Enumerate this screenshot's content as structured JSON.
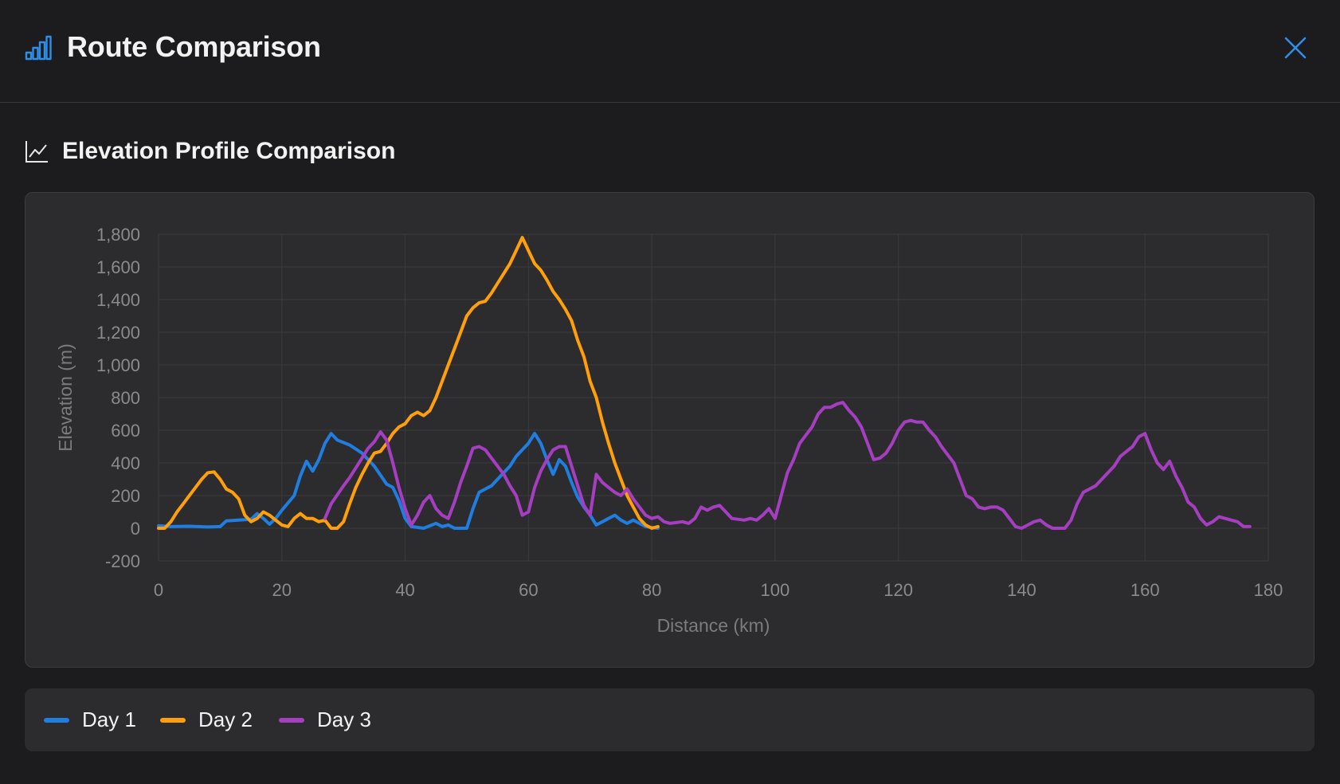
{
  "header": {
    "title": "Route Comparison",
    "icon": "bar-chart-icon",
    "close_icon": "close-icon"
  },
  "section": {
    "title": "Elevation Profile Comparison",
    "icon": "line-chart-icon"
  },
  "colors": {
    "accent": "#2f8fe8",
    "day1": "#1f7ee0",
    "day2": "#ff9f0a",
    "day3": "#a53ec0"
  },
  "legend": {
    "items": [
      {
        "label": "Day 1",
        "color": "#1f7ee0"
      },
      {
        "label": "Day 2",
        "color": "#ff9f0a"
      },
      {
        "label": "Day 3",
        "color": "#a53ec0"
      }
    ]
  },
  "chart_data": {
    "type": "line",
    "xlabel": "Distance (km)",
    "ylabel": "Elevation (m)",
    "xlim": [
      0,
      180
    ],
    "ylim": [
      -200,
      1800
    ],
    "xticks": [
      0,
      20,
      40,
      60,
      80,
      100,
      120,
      140,
      160,
      180
    ],
    "yticks": [
      -200,
      0,
      200,
      400,
      600,
      800,
      1000,
      1200,
      1400,
      1600,
      1800
    ],
    "ytick_labels": [
      "-200",
      "0",
      "200",
      "400",
      "600",
      "800",
      "1,000",
      "1,200",
      "1,400",
      "1,600",
      "1,800"
    ],
    "xtick_labels": [
      "0",
      "20",
      "40",
      "60",
      "80",
      "100",
      "120",
      "140",
      "160",
      "180"
    ],
    "grid": true,
    "legend_position": "bottom",
    "series": [
      {
        "name": "Day 1",
        "color": "#1f7ee0",
        "points": [
          [
            0,
            15
          ],
          [
            2,
            10
          ],
          [
            5,
            12
          ],
          [
            8,
            8
          ],
          [
            10,
            10
          ],
          [
            11,
            45
          ],
          [
            13,
            50
          ],
          [
            15,
            55
          ],
          [
            16,
            90
          ],
          [
            17,
            60
          ],
          [
            18,
            25
          ],
          [
            19,
            60
          ],
          [
            20,
            110
          ],
          [
            22,
            200
          ],
          [
            23,
            320
          ],
          [
            24,
            410
          ],
          [
            25,
            350
          ],
          [
            26,
            420
          ],
          [
            27,
            520
          ],
          [
            28,
            580
          ],
          [
            29,
            540
          ],
          [
            31,
            510
          ],
          [
            33,
            460
          ],
          [
            35,
            380
          ],
          [
            37,
            270
          ],
          [
            38,
            250
          ],
          [
            39,
            170
          ],
          [
            40,
            60
          ],
          [
            41,
            10
          ],
          [
            43,
            0
          ],
          [
            45,
            30
          ],
          [
            46,
            10
          ],
          [
            47,
            20
          ],
          [
            48,
            0
          ],
          [
            50,
            0
          ],
          [
            51,
            120
          ],
          [
            52,
            220
          ],
          [
            54,
            260
          ],
          [
            55,
            300
          ],
          [
            57,
            380
          ],
          [
            58,
            440
          ],
          [
            60,
            520
          ],
          [
            61,
            580
          ],
          [
            62,
            520
          ],
          [
            63,
            420
          ],
          [
            64,
            330
          ],
          [
            65,
            420
          ],
          [
            66,
            380
          ],
          [
            67,
            280
          ],
          [
            68,
            190
          ],
          [
            69,
            130
          ],
          [
            70,
            80
          ],
          [
            71,
            20
          ],
          [
            72,
            40
          ],
          [
            73,
            60
          ],
          [
            74,
            80
          ],
          [
            75,
            50
          ],
          [
            76,
            30
          ],
          [
            77,
            50
          ],
          [
            78,
            30
          ],
          [
            79,
            10
          ],
          [
            80,
            5
          ],
          [
            81,
            0
          ]
        ]
      },
      {
        "name": "Day 2",
        "color": "#ff9f0a",
        "points": [
          [
            0,
            0
          ],
          [
            1,
            0
          ],
          [
            2,
            40
          ],
          [
            3,
            100
          ],
          [
            4,
            150
          ],
          [
            5,
            200
          ],
          [
            6,
            250
          ],
          [
            7,
            300
          ],
          [
            8,
            340
          ],
          [
            9,
            345
          ],
          [
            10,
            300
          ],
          [
            11,
            240
          ],
          [
            12,
            220
          ],
          [
            13,
            180
          ],
          [
            14,
            80
          ],
          [
            15,
            40
          ],
          [
            16,
            60
          ],
          [
            17,
            100
          ],
          [
            18,
            80
          ],
          [
            19,
            50
          ],
          [
            20,
            20
          ],
          [
            21,
            10
          ],
          [
            22,
            60
          ],
          [
            23,
            90
          ],
          [
            24,
            60
          ],
          [
            25,
            60
          ],
          [
            26,
            40
          ],
          [
            27,
            50
          ],
          [
            28,
            0
          ],
          [
            29,
            0
          ],
          [
            30,
            40
          ],
          [
            31,
            150
          ],
          [
            32,
            250
          ],
          [
            33,
            330
          ],
          [
            34,
            400
          ],
          [
            35,
            460
          ],
          [
            36,
            470
          ],
          [
            37,
            520
          ],
          [
            38,
            580
          ],
          [
            39,
            620
          ],
          [
            40,
            640
          ],
          [
            41,
            690
          ],
          [
            42,
            710
          ],
          [
            43,
            690
          ],
          [
            44,
            720
          ],
          [
            45,
            800
          ],
          [
            46,
            900
          ],
          [
            47,
            1000
          ],
          [
            48,
            1100
          ],
          [
            49,
            1200
          ],
          [
            50,
            1300
          ],
          [
            51,
            1350
          ],
          [
            52,
            1380
          ],
          [
            53,
            1390
          ],
          [
            54,
            1440
          ],
          [
            55,
            1500
          ],
          [
            56,
            1560
          ],
          [
            57,
            1620
          ],
          [
            58,
            1700
          ],
          [
            59,
            1780
          ],
          [
            60,
            1700
          ],
          [
            61,
            1620
          ],
          [
            62,
            1580
          ],
          [
            63,
            1520
          ],
          [
            64,
            1450
          ],
          [
            65,
            1400
          ],
          [
            66,
            1340
          ],
          [
            67,
            1270
          ],
          [
            68,
            1150
          ],
          [
            69,
            1050
          ],
          [
            70,
            900
          ],
          [
            71,
            800
          ],
          [
            72,
            650
          ],
          [
            73,
            520
          ],
          [
            74,
            400
          ],
          [
            75,
            300
          ],
          [
            76,
            200
          ],
          [
            77,
            130
          ],
          [
            78,
            60
          ],
          [
            79,
            20
          ],
          [
            80,
            0
          ],
          [
            81,
            10
          ]
        ]
      },
      {
        "name": "Day 3",
        "color": "#a53ec0",
        "points": [
          [
            27,
            60
          ],
          [
            28,
            150
          ],
          [
            30,
            260
          ],
          [
            31,
            310
          ],
          [
            33,
            430
          ],
          [
            34,
            490
          ],
          [
            35,
            530
          ],
          [
            36,
            590
          ],
          [
            37,
            540
          ],
          [
            38,
            400
          ],
          [
            39,
            250
          ],
          [
            40,
            120
          ],
          [
            41,
            20
          ],
          [
            42,
            80
          ],
          [
            43,
            160
          ],
          [
            44,
            200
          ],
          [
            45,
            120
          ],
          [
            46,
            80
          ],
          [
            47,
            60
          ],
          [
            48,
            160
          ],
          [
            49,
            280
          ],
          [
            50,
            380
          ],
          [
            51,
            490
          ],
          [
            52,
            500
          ],
          [
            53,
            480
          ],
          [
            54,
            430
          ],
          [
            55,
            380
          ],
          [
            56,
            330
          ],
          [
            57,
            260
          ],
          [
            58,
            200
          ],
          [
            59,
            80
          ],
          [
            60,
            100
          ],
          [
            61,
            250
          ],
          [
            62,
            350
          ],
          [
            63,
            420
          ],
          [
            64,
            480
          ],
          [
            65,
            500
          ],
          [
            66,
            500
          ],
          [
            67,
            380
          ],
          [
            68,
            260
          ],
          [
            69,
            140
          ],
          [
            70,
            80
          ],
          [
            71,
            330
          ],
          [
            72,
            280
          ],
          [
            73,
            250
          ],
          [
            74,
            220
          ],
          [
            75,
            200
          ],
          [
            76,
            240
          ],
          [
            77,
            180
          ],
          [
            78,
            130
          ],
          [
            79,
            80
          ],
          [
            80,
            60
          ],
          [
            81,
            70
          ],
          [
            82,
            40
          ],
          [
            83,
            30
          ],
          [
            85,
            40
          ],
          [
            86,
            30
          ],
          [
            87,
            60
          ],
          [
            88,
            130
          ],
          [
            89,
            110
          ],
          [
            90,
            130
          ],
          [
            91,
            140
          ],
          [
            92,
            100
          ],
          [
            93,
            60
          ],
          [
            95,
            50
          ],
          [
            96,
            60
          ],
          [
            97,
            50
          ],
          [
            98,
            80
          ],
          [
            99,
            120
          ],
          [
            100,
            60
          ],
          [
            101,
            200
          ],
          [
            102,
            340
          ],
          [
            103,
            420
          ],
          [
            104,
            520
          ],
          [
            106,
            620
          ],
          [
            107,
            700
          ],
          [
            108,
            740
          ],
          [
            109,
            740
          ],
          [
            110,
            760
          ],
          [
            111,
            770
          ],
          [
            112,
            720
          ],
          [
            113,
            680
          ],
          [
            114,
            620
          ],
          [
            115,
            520
          ],
          [
            116,
            420
          ],
          [
            117,
            430
          ],
          [
            118,
            460
          ],
          [
            119,
            520
          ],
          [
            120,
            600
          ],
          [
            121,
            650
          ],
          [
            122,
            660
          ],
          [
            123,
            650
          ],
          [
            124,
            650
          ],
          [
            125,
            600
          ],
          [
            126,
            560
          ],
          [
            127,
            500
          ],
          [
            128,
            450
          ],
          [
            129,
            400
          ],
          [
            130,
            300
          ],
          [
            131,
            200
          ],
          [
            132,
            180
          ],
          [
            133,
            130
          ],
          [
            134,
            120
          ],
          [
            135,
            130
          ],
          [
            136,
            130
          ],
          [
            137,
            110
          ],
          [
            138,
            60
          ],
          [
            139,
            10
          ],
          [
            140,
            0
          ],
          [
            141,
            20
          ],
          [
            142,
            40
          ],
          [
            143,
            50
          ],
          [
            144,
            20
          ],
          [
            145,
            0
          ],
          [
            147,
            0
          ],
          [
            148,
            50
          ],
          [
            149,
            150
          ],
          [
            150,
            220
          ],
          [
            152,
            260
          ],
          [
            153,
            300
          ],
          [
            154,
            340
          ],
          [
            155,
            380
          ],
          [
            156,
            440
          ],
          [
            157,
            470
          ],
          [
            158,
            500
          ],
          [
            159,
            560
          ],
          [
            160,
            580
          ],
          [
            161,
            480
          ],
          [
            162,
            400
          ],
          [
            163,
            360
          ],
          [
            164,
            410
          ],
          [
            165,
            320
          ],
          [
            166,
            250
          ],
          [
            167,
            160
          ],
          [
            168,
            130
          ],
          [
            169,
            60
          ],
          [
            170,
            20
          ],
          [
            171,
            40
          ],
          [
            172,
            70
          ],
          [
            173,
            60
          ],
          [
            174,
            50
          ],
          [
            175,
            40
          ],
          [
            176,
            10
          ],
          [
            177,
            10
          ]
        ]
      }
    ]
  }
}
